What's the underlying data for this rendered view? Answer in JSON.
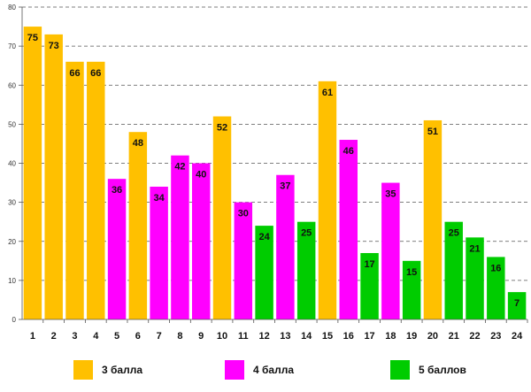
{
  "chart_data": {
    "type": "bar",
    "title": "",
    "xlabel": "",
    "ylabel": "",
    "ylim": [
      0,
      80
    ],
    "yticks": [
      0,
      10,
      20,
      30,
      40,
      50,
      60,
      70,
      80
    ],
    "grid": true,
    "categories": [
      "1",
      "2",
      "3",
      "4",
      "5",
      "6",
      "7",
      "8",
      "9",
      "10",
      "11",
      "12",
      "13",
      "14",
      "15",
      "16",
      "17",
      "18",
      "19",
      "20",
      "21",
      "22",
      "23",
      "24"
    ],
    "values": [
      75,
      73,
      66,
      66,
      36,
      48,
      34,
      42,
      40,
      52,
      30,
      24,
      37,
      25,
      61,
      46,
      17,
      35,
      15,
      51,
      25,
      21,
      16,
      7
    ],
    "groups": [
      "3",
      "3",
      "3",
      "3",
      "4",
      "3",
      "4",
      "4",
      "4",
      "3",
      "4",
      "5",
      "4",
      "5",
      "3",
      "4",
      "5",
      "4",
      "5",
      "3",
      "5",
      "5",
      "5",
      "5"
    ],
    "legend_position": "bottom",
    "legend": [
      {
        "key": "3",
        "label": "3 балла",
        "color": "#FFC000"
      },
      {
        "key": "4",
        "label": "4 балла",
        "color": "#FF00FF"
      },
      {
        "key": "5",
        "label": "5 баллов",
        "color": "#00CC00"
      }
    ]
  }
}
